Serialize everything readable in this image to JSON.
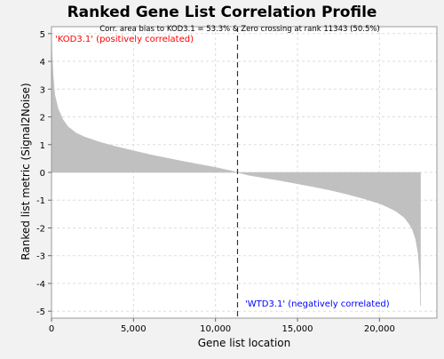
{
  "chart_data": {
    "type": "area",
    "title": "Ranked Gene List Correlation Profile",
    "subtitle": "Corr. area bias to KOD3.1 = 53.3% & Zero crossing at rank 11343 (50.5%)",
    "xlabel": "Gene list location",
    "ylabel": "Ranked list metric (Signal2Noise)",
    "xlim": [
      0,
      23500
    ],
    "ylim": [
      -5.25,
      5.25
    ],
    "x_ticks": [
      0,
      5000,
      10000,
      15000,
      20000
    ],
    "x_tick_labels": [
      "0",
      "5,000",
      "10,000",
      "15,000",
      "20,000"
    ],
    "y_ticks": [
      5,
      4,
      3,
      2,
      1,
      0,
      -1,
      -2,
      -3,
      -4,
      -5
    ],
    "y_tick_labels": [
      "5",
      "4",
      "3",
      "2",
      "1",
      "0",
      "-1",
      "-2",
      "-3",
      "-4",
      "-5"
    ],
    "grid": true,
    "zero_crossing_rank": 11343,
    "annotations": {
      "positive": "'KOD3.1' (positively correlated)",
      "negative": "'WTD3.1' (negatively correlated)"
    },
    "colors": {
      "fill": "#c0c0c0",
      "positive_label": "#ff0000",
      "negative_label": "#0000ff",
      "plot_background": "#ffffff",
      "page_background": "#f2f2f2",
      "grid": "#dddddd"
    },
    "x": [
      0,
      30,
      100,
      200,
      400,
      700,
      1000,
      1500,
      2000,
      3000,
      4000,
      5000,
      6000,
      7000,
      8000,
      9000,
      10000,
      11000,
      11343,
      12000,
      13000,
      14000,
      15000,
      16000,
      17000,
      18000,
      19000,
      20000,
      20500,
      21000,
      21500,
      21800,
      22000,
      22200,
      22350,
      22450,
      22500
    ],
    "values": [
      5.1,
      4.3,
      3.5,
      2.8,
      2.3,
      1.9,
      1.65,
      1.42,
      1.28,
      1.08,
      0.92,
      0.78,
      0.64,
      0.52,
      0.4,
      0.29,
      0.18,
      0.05,
      0.0,
      -0.1,
      -0.2,
      -0.3,
      -0.41,
      -0.52,
      -0.64,
      -0.78,
      -0.94,
      -1.12,
      -1.25,
      -1.4,
      -1.62,
      -1.85,
      -2.05,
      -2.4,
      -2.9,
      -3.6,
      -4.8
    ]
  }
}
